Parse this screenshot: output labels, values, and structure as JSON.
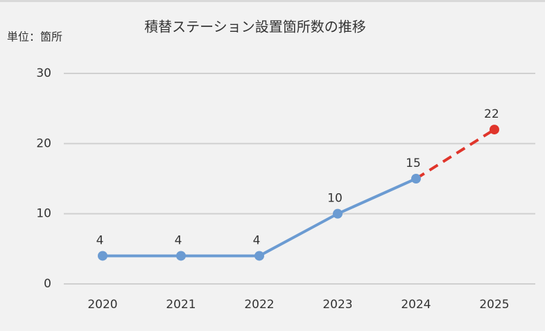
{
  "chart_data": {
    "type": "line",
    "title": "積替ステーション設置箇所数の推移",
    "unit_label": "単位：箇所",
    "categories": [
      "2020",
      "2021",
      "2022",
      "2023",
      "2024",
      "2025"
    ],
    "series": [
      {
        "color": "#6b9bd2",
        "line_style": "solid",
        "values": [
          4,
          4,
          4,
          10,
          15,
          null
        ]
      },
      {
        "color": "#e0352b",
        "line_style": "dashed",
        "values": [
          null,
          null,
          null,
          null,
          15,
          22
        ]
      }
    ],
    "ylim": [
      0,
      30
    ],
    "yticks": [
      0,
      10,
      20,
      30
    ],
    "grid": true,
    "data_labels": true
  }
}
